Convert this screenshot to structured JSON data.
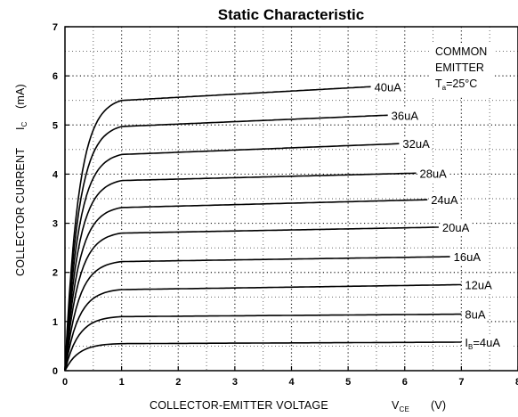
{
  "chart_data": {
    "type": "line",
    "title": "Static Characteristic",
    "xlabel": "COLLECTOR-EMITTER VOLTAGE",
    "xlabel_symbol": "V",
    "xlabel_symbol_sub": "CE",
    "xlabel_unit": "(V)",
    "ylabel": "COLLECTOR CURRENT",
    "ylabel_symbol": "I",
    "ylabel_symbol_sub": "C",
    "ylabel_unit": "(mA)",
    "xlim": [
      0,
      8
    ],
    "ylim": [
      0,
      7
    ],
    "x_ticks": [
      "0",
      "1",
      "2",
      "3",
      "4",
      "5",
      "6",
      "7",
      "8"
    ],
    "y_ticks": [
      "0",
      "1",
      "2",
      "3",
      "4",
      "5",
      "6",
      "7"
    ],
    "grid": "dotted, 0.5 minor",
    "annotation": {
      "line1": "COMMON",
      "line2": "EMITTER",
      "line3_prefix": "T",
      "line3_sub": "a",
      "line3_suffix": "=25°C"
    },
    "series": [
      {
        "name": "4uA",
        "label_prefix": "I",
        "label_sub": "B",
        "label_main": "=4uA",
        "sat": 0.55,
        "end_x": 7.0,
        "end_y": 0.58
      },
      {
        "name": "8uA",
        "label": "8uA",
        "sat": 1.1,
        "end_x": 7.0,
        "end_y": 1.15
      },
      {
        "name": "12uA",
        "label": "12uA",
        "sat": 1.65,
        "end_x": 7.0,
        "end_y": 1.75
      },
      {
        "name": "16uA",
        "label": "16uA",
        "sat": 2.22,
        "end_x": 6.8,
        "end_y": 2.32
      },
      {
        "name": "20uA",
        "label": "20uA",
        "sat": 2.8,
        "end_x": 6.6,
        "end_y": 2.92
      },
      {
        "name": "24uA",
        "label": "24uA",
        "sat": 3.32,
        "end_x": 6.4,
        "end_y": 3.48
      },
      {
        "name": "28uA",
        "label": "28uA",
        "sat": 3.87,
        "end_x": 6.2,
        "end_y": 4.02
      },
      {
        "name": "32uA",
        "label": "32uA",
        "sat": 4.4,
        "end_x": 5.9,
        "end_y": 4.62
      },
      {
        "name": "36uA",
        "label": "36uA",
        "sat": 4.97,
        "end_x": 5.7,
        "end_y": 5.2
      },
      {
        "name": "40uA",
        "label": "40uA",
        "sat": 5.5,
        "end_x": 5.4,
        "end_y": 5.78
      }
    ]
  }
}
